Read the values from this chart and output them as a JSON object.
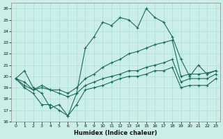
{
  "xlabel": "Humidex (Indice chaleur)",
  "background_color": "#cceee8",
  "grid_color": "#aaddda",
  "line_color": "#1a6b5a",
  "xlim": [
    -0.5,
    23.5
  ],
  "ylim": [
    16,
    26.5
  ],
  "xticks": [
    0,
    1,
    2,
    3,
    4,
    5,
    6,
    7,
    8,
    9,
    10,
    11,
    12,
    13,
    14,
    15,
    16,
    17,
    18,
    19,
    20,
    21,
    22,
    23
  ],
  "yticks": [
    16,
    17,
    18,
    19,
    20,
    21,
    22,
    23,
    24,
    25,
    26
  ],
  "hours": [
    0,
    1,
    2,
    3,
    4,
    5,
    6,
    7,
    8,
    9,
    10,
    11,
    12,
    13,
    14,
    15,
    16,
    17,
    18,
    19,
    20,
    21,
    22,
    23
  ],
  "line_max": [
    19.8,
    20.5,
    19.0,
    18.5,
    17.2,
    17.5,
    16.5,
    18.5,
    22.5,
    23.5,
    24.8,
    24.5,
    25.2,
    25.0,
    24.3,
    26.0,
    25.2,
    24.8,
    23.5,
    21.5,
    20.0,
    21.0,
    20.2,
    20.5
  ],
  "line_mean": [
    19.8,
    19.5,
    18.8,
    19.2,
    18.8,
    18.8,
    18.5,
    19.0,
    19.8,
    20.2,
    20.8,
    21.2,
    21.5,
    22.0,
    22.2,
    22.5,
    22.8,
    23.0,
    23.2,
    20.0,
    20.2,
    20.2,
    20.3,
    20.5
  ],
  "line_min": [
    19.8,
    19.2,
    18.8,
    19.0,
    18.8,
    18.5,
    18.2,
    18.5,
    19.2,
    19.5,
    19.8,
    20.0,
    20.2,
    20.5,
    20.5,
    20.8,
    21.0,
    21.2,
    21.5,
    19.5,
    19.8,
    19.8,
    19.8,
    20.2
  ],
  "line_osc": [
    19.8,
    19.0,
    18.5,
    17.5,
    17.5,
    17.0,
    16.5,
    17.5,
    18.8,
    19.0,
    19.2,
    19.5,
    19.8,
    20.0,
    20.0,
    20.2,
    20.5,
    20.5,
    20.8,
    19.0,
    19.2,
    19.2,
    19.2,
    19.8
  ]
}
